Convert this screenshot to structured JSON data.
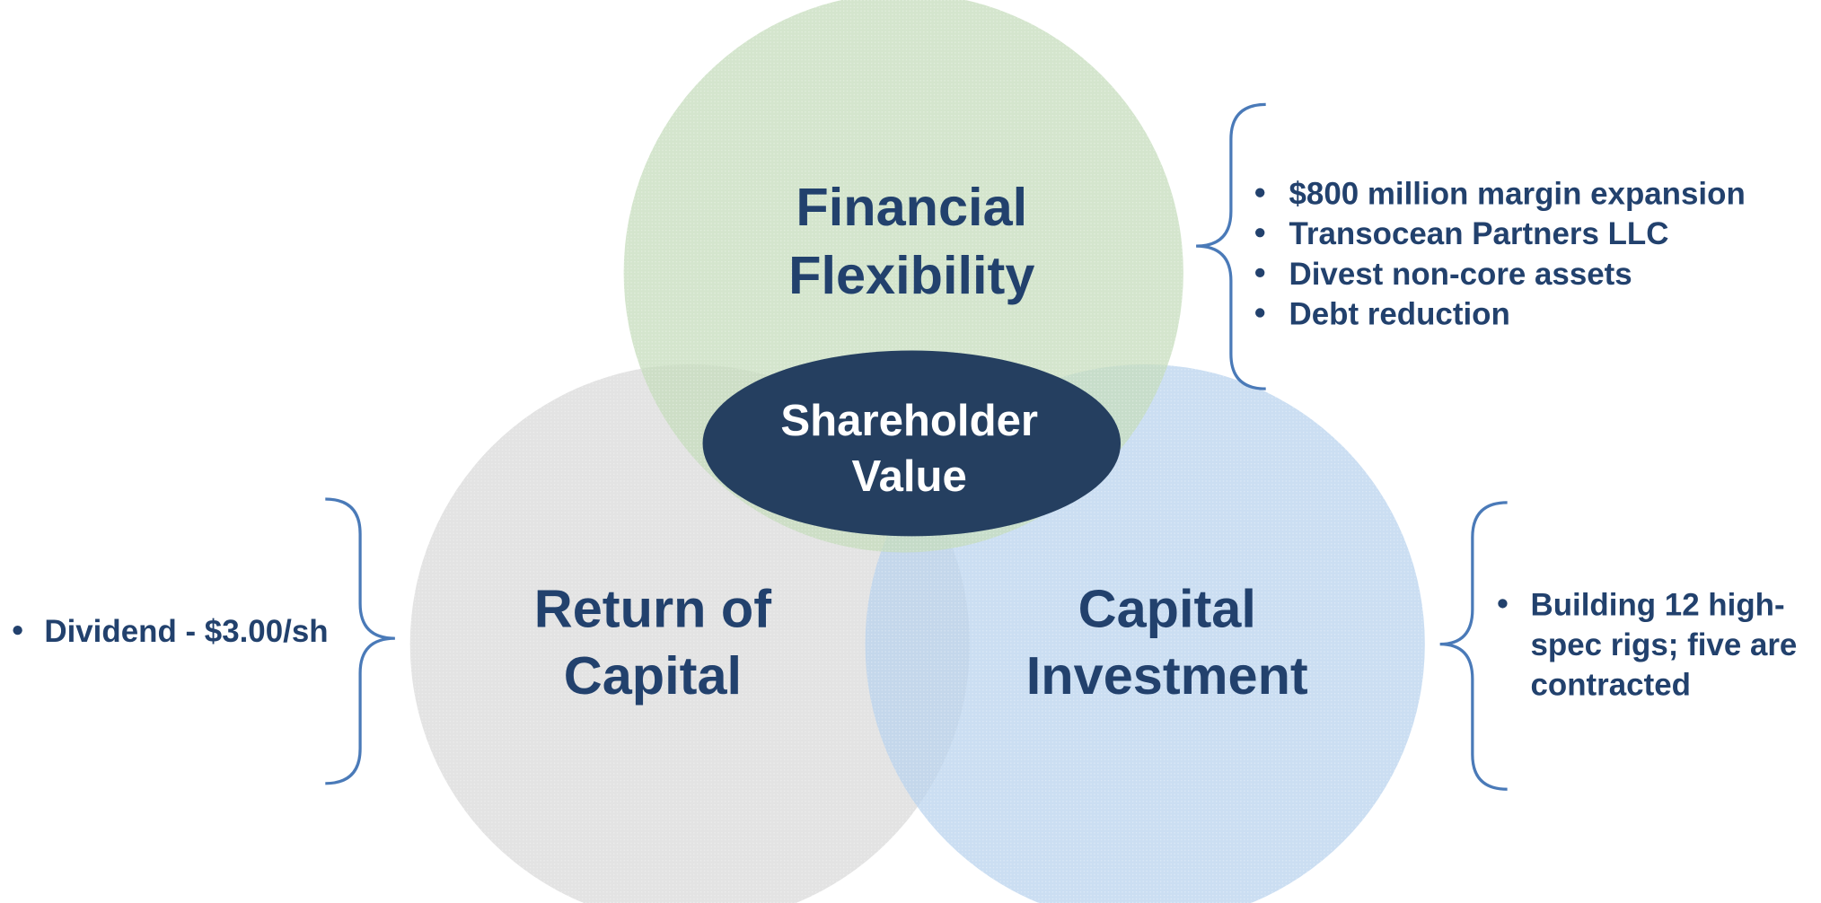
{
  "center": {
    "label_lines": [
      "Shareholder",
      "Value"
    ]
  },
  "circles": [
    {
      "label_lines": [
        "Financial",
        "Flexibility"
      ],
      "bullets": [
        "$800 million margin expansion",
        "Transocean Partners LLC",
        "Divest non-core assets",
        "Debt reduction"
      ]
    },
    {
      "label_lines": [
        "Return of",
        "Capital"
      ],
      "bullets": [
        "Dividend - $3.00/sh"
      ]
    },
    {
      "label_lines": [
        "Capital",
        "Investment"
      ],
      "bullets": [
        [
          "Building 12 high-",
          "spec rigs; five are",
          "contracted"
        ]
      ]
    }
  ]
}
